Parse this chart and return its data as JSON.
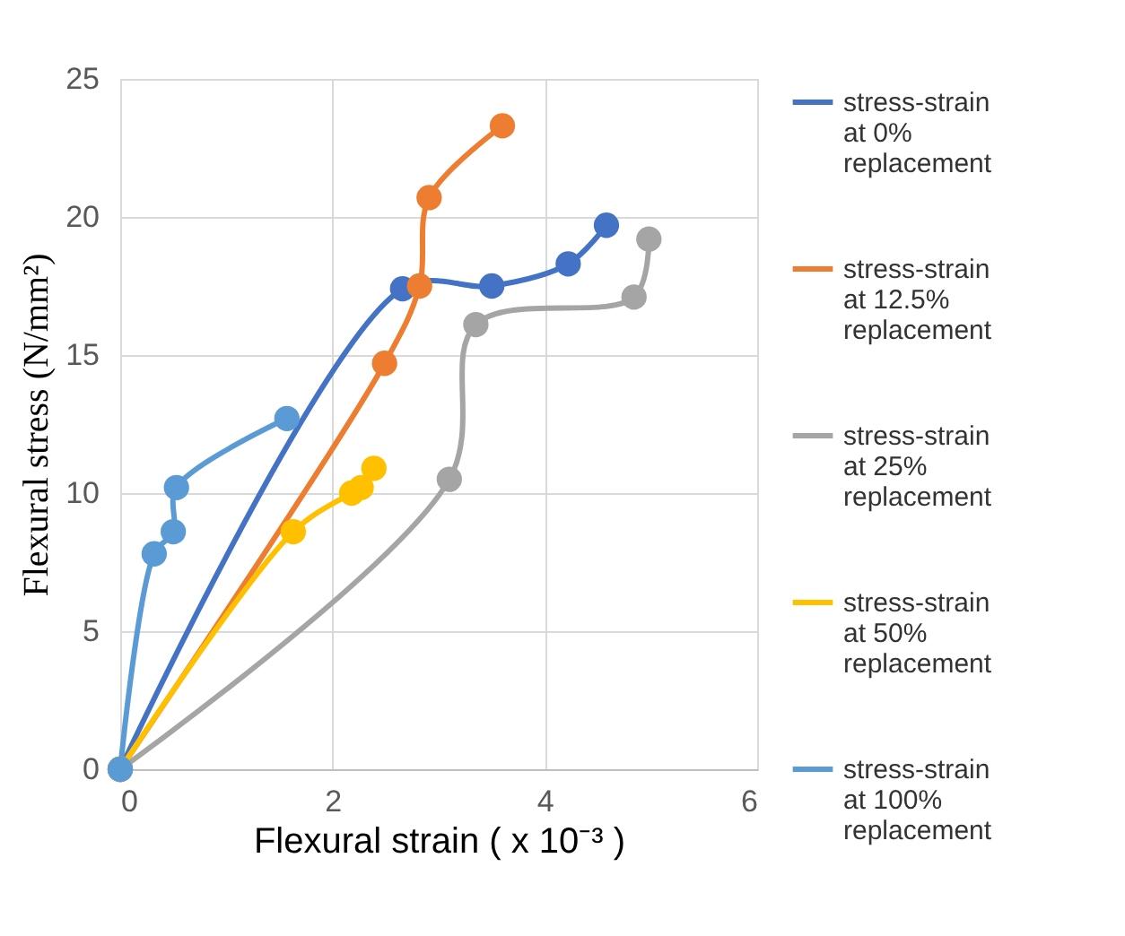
{
  "chart_data": {
    "type": "line",
    "xlabel": "Flexural strain ( x 10⁻³ )",
    "ylabel": "Flexural stress (N/mm²)",
    "xlim": [
      0,
      6
    ],
    "xticks": [
      0,
      2,
      4,
      6
    ],
    "ylim": [
      0,
      25
    ],
    "yticks": [
      0,
      5,
      10,
      15,
      20,
      25
    ],
    "grid": true,
    "legend": "right",
    "marker": "circle",
    "line_style": "solid",
    "series": [
      {
        "name": "stress-strain at 0% replacement",
        "color": "#4472c4",
        "x": [
          0,
          2.66,
          3.5,
          4.22,
          4.58
        ],
        "values": [
          0,
          17.4,
          17.5,
          18.3,
          19.7
        ]
      },
      {
        "name": "stress-strain at 12.5% replacement",
        "color": "#ed7d31",
        "x": [
          0,
          2.49,
          2.82,
          2.91,
          3.6
        ],
        "values": [
          0,
          14.7,
          17.5,
          20.7,
          23.3
        ]
      },
      {
        "name": "stress-strain at 25% replacement",
        "color": "#a5a5a5",
        "x": [
          0,
          3.1,
          3.35,
          4.84,
          4.98
        ],
        "values": [
          0,
          10.5,
          16.1,
          17.1,
          19.2
        ]
      },
      {
        "name": "stress-strain at 50% replacement",
        "color": "#ffc000",
        "x": [
          0,
          1.63,
          2.18,
          2.27,
          2.39
        ],
        "values": [
          0,
          8.6,
          10.0,
          10.2,
          10.9
        ]
      },
      {
        "name": "stress-strain at 100% replacement",
        "color": "#5b9bd5",
        "x": [
          0,
          0.32,
          0.5,
          0.53,
          1.57
        ],
        "values": [
          0,
          7.8,
          8.6,
          10.2,
          12.7
        ]
      }
    ]
  }
}
